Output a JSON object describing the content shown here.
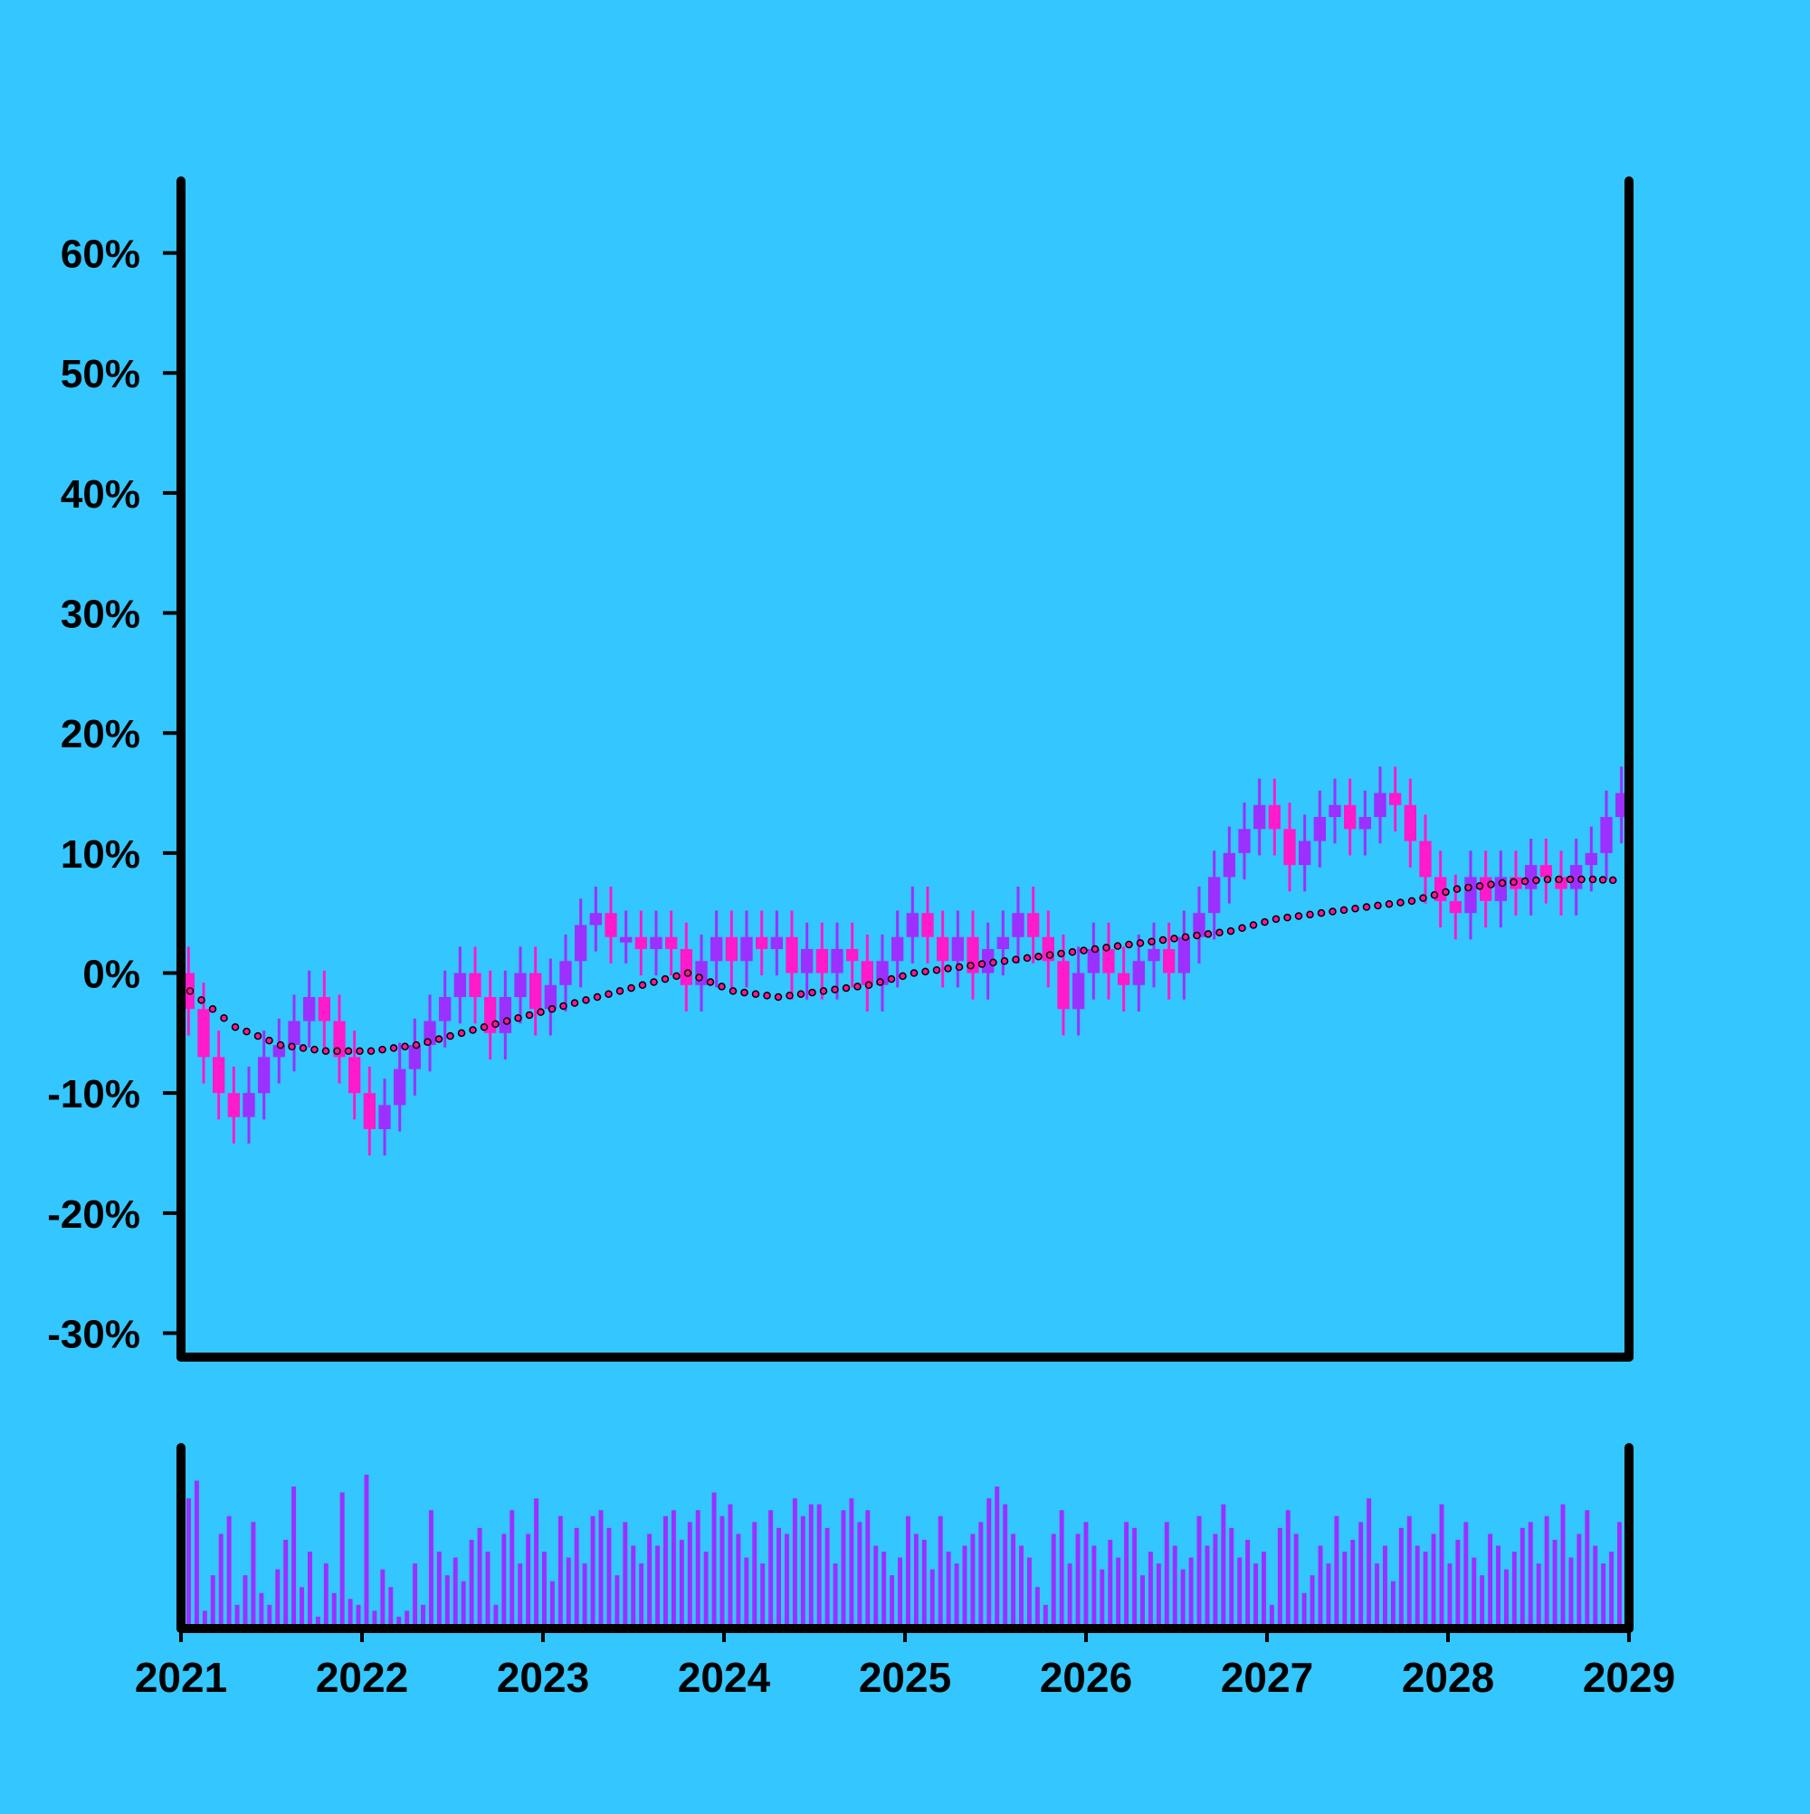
{
  "chart_data": {
    "type": "candlestick",
    "title": "",
    "xlabel": "",
    "ylabel": "",
    "x_tick_labels": [
      "2021",
      "2022",
      "2023",
      "2024",
      "2025",
      "2026",
      "2027",
      "2028",
      "2029"
    ],
    "y_tick_labels": [
      "-30%",
      "-20%",
      "-10%",
      "0%",
      "10%",
      "20%",
      "30%",
      "40%",
      "50%",
      "60%"
    ],
    "ylim": [
      -32,
      66
    ],
    "xlim": [
      "2021-01",
      "2029-01"
    ],
    "grid": false,
    "legend": "none",
    "series": [
      {
        "type": "candlestick",
        "unit": "%",
        "points": [
          [
            "2021-01",
            0,
            -3
          ],
          [
            "2021-02",
            -3,
            -7
          ],
          [
            "2021-03",
            -7,
            -10
          ],
          [
            "2021-04",
            -10,
            -12
          ],
          [
            "2021-05",
            -12,
            -10
          ],
          [
            "2021-06",
            -10,
            -7
          ],
          [
            "2021-07",
            -7,
            -6
          ],
          [
            "2021-08",
            -6,
            -4
          ],
          [
            "2021-09",
            -4,
            -2
          ],
          [
            "2021-10",
            -2,
            -4
          ],
          [
            "2021-11",
            -4,
            -7
          ],
          [
            "2021-12",
            -7,
            -10
          ],
          [
            "2022-01",
            -10,
            -13
          ],
          [
            "2022-02",
            -13,
            -11
          ],
          [
            "2022-03",
            -11,
            -8
          ],
          [
            "2022-04",
            -8,
            -6
          ],
          [
            "2022-05",
            -6,
            -4
          ],
          [
            "2022-06",
            -4,
            -2
          ],
          [
            "2022-07",
            -2,
            0
          ],
          [
            "2022-08",
            0,
            -2
          ],
          [
            "2022-09",
            -2,
            -5
          ],
          [
            "2022-10",
            -5,
            -2
          ],
          [
            "2022-11",
            -2,
            0
          ],
          [
            "2022-12",
            0,
            -3
          ],
          [
            "2023-01",
            -3,
            -1
          ],
          [
            "2023-02",
            -1,
            1
          ],
          [
            "2023-03",
            1,
            4
          ],
          [
            "2023-04",
            4,
            5
          ],
          [
            "2023-05",
            5,
            3
          ],
          [
            "2023-06",
            3,
            3
          ],
          [
            "2023-07",
            3,
            2
          ],
          [
            "2023-08",
            2,
            3
          ],
          [
            "2023-09",
            3,
            2
          ],
          [
            "2023-10",
            2,
            -1
          ],
          [
            "2023-11",
            -1,
            1
          ],
          [
            "2023-12",
            1,
            3
          ],
          [
            "2024-01",
            3,
            1
          ],
          [
            "2024-02",
            1,
            3
          ],
          [
            "2024-03",
            3,
            2
          ],
          [
            "2024-04",
            2,
            3
          ],
          [
            "2024-05",
            3,
            0
          ],
          [
            "2024-06",
            0,
            2
          ],
          [
            "2024-07",
            2,
            0
          ],
          [
            "2024-08",
            0,
            2
          ],
          [
            "2024-09",
            2,
            1
          ],
          [
            "2024-10",
            1,
            -1
          ],
          [
            "2024-11",
            -1,
            1
          ],
          [
            "2024-12",
            1,
            3
          ],
          [
            "2025-01",
            3,
            5
          ],
          [
            "2025-02",
            5,
            3
          ],
          [
            "2025-03",
            3,
            1
          ],
          [
            "2025-04",
            1,
            3
          ],
          [
            "2025-05",
            3,
            0
          ],
          [
            "2025-06",
            0,
            2
          ],
          [
            "2025-07",
            2,
            3
          ],
          [
            "2025-08",
            3,
            5
          ],
          [
            "2025-09",
            5,
            3
          ],
          [
            "2025-10",
            3,
            1
          ],
          [
            "2025-11",
            1,
            -3
          ],
          [
            "2025-12",
            -3,
            0
          ],
          [
            "2026-01",
            0,
            2
          ],
          [
            "2026-02",
            2,
            0
          ],
          [
            "2026-03",
            0,
            -1
          ],
          [
            "2026-04",
            -1,
            1
          ],
          [
            "2026-05",
            1,
            2
          ],
          [
            "2026-06",
            2,
            0
          ],
          [
            "2026-07",
            0,
            3
          ],
          [
            "2026-08",
            3,
            5
          ],
          [
            "2026-09",
            5,
            8
          ],
          [
            "2026-10",
            8,
            10
          ],
          [
            "2026-11",
            10,
            12
          ],
          [
            "2026-12",
            12,
            14
          ],
          [
            "2027-01",
            14,
            12
          ],
          [
            "2027-02",
            12,
            9
          ],
          [
            "2027-03",
            9,
            11
          ],
          [
            "2027-04",
            11,
            13
          ],
          [
            "2027-05",
            13,
            14
          ],
          [
            "2027-06",
            14,
            12
          ],
          [
            "2027-07",
            12,
            13
          ],
          [
            "2027-08",
            13,
            15
          ],
          [
            "2027-09",
            15,
            14
          ],
          [
            "2027-10",
            14,
            11
          ],
          [
            "2027-11",
            11,
            8
          ],
          [
            "2027-12",
            8,
            6
          ],
          [
            "2028-01",
            6,
            5
          ],
          [
            "2028-02",
            5,
            8
          ],
          [
            "2028-03",
            8,
            6
          ],
          [
            "2028-04",
            6,
            8
          ],
          [
            "2028-05",
            8,
            7
          ],
          [
            "2028-06",
            7,
            9
          ],
          [
            "2028-07",
            9,
            8
          ],
          [
            "2028-08",
            8,
            7
          ],
          [
            "2028-09",
            7,
            9
          ],
          [
            "2028-10",
            9,
            10
          ],
          [
            "2028-11",
            10,
            13
          ],
          [
            "2028-12",
            13,
            15
          ]
        ]
      },
      {
        "type": "moving-average",
        "unit": "%",
        "points": [
          [
            "2021-01",
            -1.5
          ],
          [
            "2021-04",
            -4.5
          ],
          [
            "2021-07",
            -6
          ],
          [
            "2021-10",
            -6.5
          ],
          [
            "2022-01",
            -6.5
          ],
          [
            "2022-04",
            -6
          ],
          [
            "2022-07",
            -5
          ],
          [
            "2022-10",
            -4
          ],
          [
            "2023-01",
            -3
          ],
          [
            "2023-04",
            -2
          ],
          [
            "2023-07",
            -1
          ],
          [
            "2023-10",
            0
          ],
          [
            "2024-01",
            -1.5
          ],
          [
            "2024-04",
            -2
          ],
          [
            "2024-07",
            -1.5
          ],
          [
            "2024-10",
            -1
          ],
          [
            "2025-01",
            0
          ],
          [
            "2025-04",
            0.5
          ],
          [
            "2025-07",
            1
          ],
          [
            "2025-10",
            1.5
          ],
          [
            "2026-01",
            2
          ],
          [
            "2026-04",
            2.5
          ],
          [
            "2026-07",
            3
          ],
          [
            "2026-10",
            3.5
          ],
          [
            "2027-01",
            4.5
          ],
          [
            "2027-04",
            5
          ],
          [
            "2027-07",
            5.5
          ],
          [
            "2027-10",
            6
          ],
          [
            "2028-01",
            7
          ],
          [
            "2028-04",
            7.5
          ],
          [
            "2028-07",
            7.8
          ],
          [
            "2028-10",
            7.8
          ],
          [
            "2028-12",
            7.7
          ]
        ]
      }
    ],
    "volume": [
      110,
      125,
      15,
      45,
      80,
      95,
      20,
      45,
      90,
      30,
      20,
      50,
      75,
      120,
      35,
      65,
      10,
      55,
      30,
      115,
      25,
      20,
      130,
      15,
      50,
      35,
      10,
      15,
      55,
      20,
      100,
      65,
      45,
      60,
      40,
      75,
      85,
      65,
      20,
      80,
      100,
      55,
      80,
      110,
      65,
      40,
      95,
      60,
      85,
      55,
      95,
      100,
      85,
      45,
      90,
      70,
      55,
      80,
      70,
      95,
      100,
      75,
      90,
      100,
      65,
      115,
      95,
      105,
      80,
      60,
      90,
      55,
      100,
      85,
      80,
      110,
      95,
      105,
      105,
      85,
      55,
      100,
      110,
      90,
      100,
      70,
      65,
      45,
      60,
      95,
      80,
      75,
      50,
      95,
      65,
      55,
      70,
      80,
      90,
      110,
      120,
      105,
      80,
      70,
      60,
      35,
      20,
      80,
      100,
      55,
      80,
      90,
      70,
      50,
      75,
      60,
      90,
      85,
      45,
      65,
      55,
      90,
      70,
      50,
      60,
      95,
      70,
      80,
      105,
      85,
      60,
      75,
      55,
      65,
      20,
      85,
      100,
      80,
      30,
      45,
      70,
      55,
      95,
      65,
      75,
      90,
      110,
      55,
      70,
      40,
      85,
      95,
      70,
      65,
      80,
      105,
      55,
      75,
      90,
      60,
      45,
      80,
      70,
      50,
      65,
      85,
      90,
      55,
      95,
      75,
      105,
      60,
      80,
      100,
      70,
      55,
      65,
      90
    ]
  }
}
